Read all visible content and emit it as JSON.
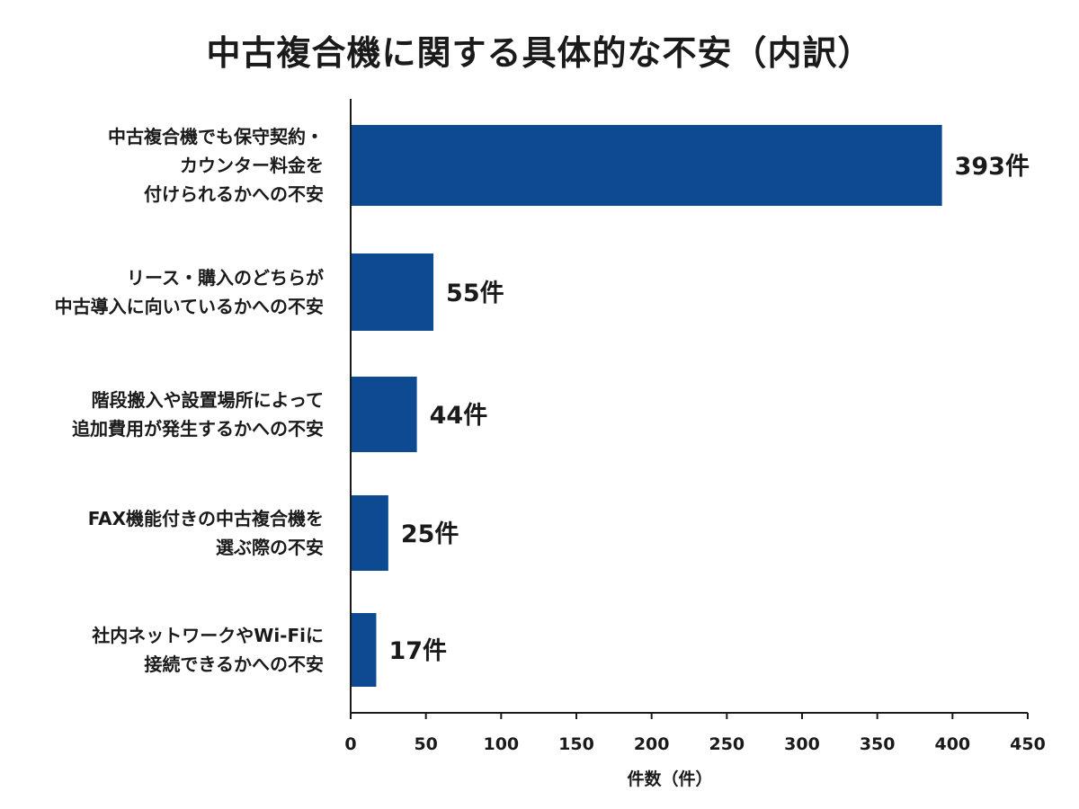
{
  "chart_data": {
    "type": "bar",
    "orientation": "horizontal",
    "title": "中古複合機に関する具体的な不安（内訳）",
    "xlabel": "件数（件）",
    "ylabel": "",
    "xlim": [
      0,
      450
    ],
    "xticks": [
      0,
      50,
      100,
      150,
      200,
      250,
      300,
      350,
      400,
      450
    ],
    "grid": false,
    "bar_color": "#0d4a92",
    "categories": [
      [
        "中古複合機でも保守契約・",
        "カウンター料金を",
        "付けられるかへの不安"
      ],
      [
        "リース・購入のどちらが",
        "中古導入に向いているかへの不安"
      ],
      [
        "階段搬入や設置場所によって",
        "追加費用が発生するかへの不安"
      ],
      [
        "FAX機能付きの中古複合機を",
        "選ぶ際の不安"
      ],
      [
        "社内ネットワークやWi-Fiに",
        "接続できるかへの不安"
      ]
    ],
    "values": [
      393,
      55,
      44,
      25,
      17
    ],
    "value_labels": [
      "393件",
      "55件",
      "44件",
      "25件",
      "17件"
    ]
  }
}
